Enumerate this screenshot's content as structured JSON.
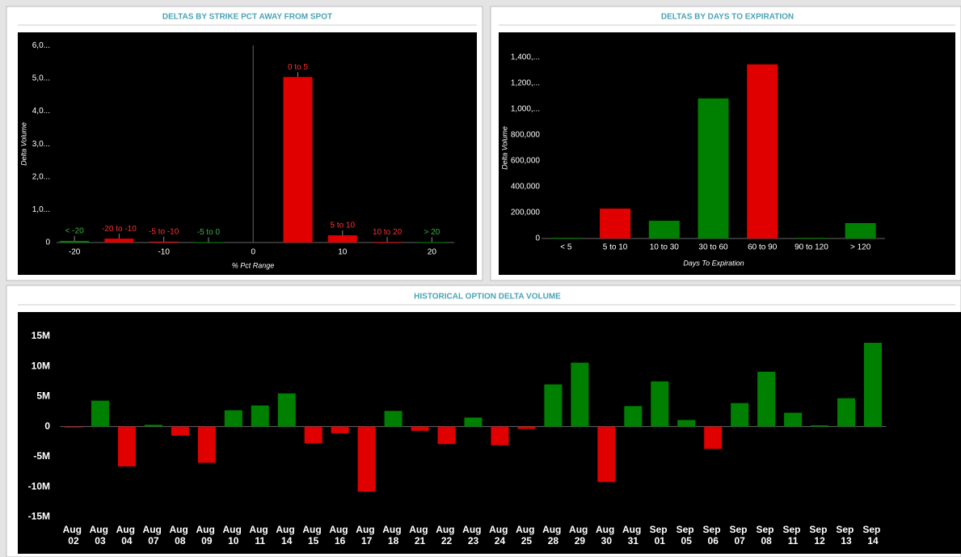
{
  "chart_data": [
    {
      "type": "bar",
      "title": "DELTAS BY STRIKE PCT AWAY FROM SPOT",
      "y_label": "Delta Volume",
      "x_label": "% Pct Range",
      "x": [
        -20,
        -15,
        -10,
        -5,
        5,
        10,
        15,
        20
      ],
      "labels": [
        "< -20",
        "-20 to -10",
        "-5 to -10",
        "-5 to 0",
        "0 to 5",
        "5 to 10",
        "10 to 20",
        "> 20"
      ],
      "values": [
        50000,
        120000,
        30000,
        10000,
        5040000,
        220000,
        20000,
        15000
      ],
      "colors": [
        "#008000",
        "#e00000",
        "#e00000",
        "#008000",
        "#e00000",
        "#e00000",
        "#e00000",
        "#008000"
      ],
      "xlim": [
        -22,
        22.5
      ],
      "xticks": [
        -20,
        -10,
        0,
        10,
        20
      ],
      "ylim": [
        0,
        6350000
      ],
      "yticks": [
        0,
        {
          "value": 1000000,
          "label": "1,0..."
        },
        {
          "value": 2000000,
          "label": "2,0..."
        },
        {
          "value": 3000000,
          "label": "3,0..."
        },
        {
          "value": 4000000,
          "label": "4,0..."
        },
        {
          "value": 5000000,
          "label": "5,0..."
        },
        {
          "value": 6000000,
          "label": "6,0..."
        }
      ]
    },
    {
      "type": "bar",
      "title": "DELTAS BY DAYS TO EXPIRATION",
      "y_label": "Delta Volume",
      "x_label": "Days To Expiration",
      "categories": [
        "< 5",
        "5 to 10",
        "10 to 30",
        "30 to 60",
        "60 to 90",
        "90 to 120",
        "> 120"
      ],
      "values": [
        5000,
        231000,
        137000,
        1081000,
        1344000,
        5000,
        119000
      ],
      "colors": [
        "#008000",
        "#e00000",
        "#008000",
        "#008000",
        "#e00000",
        "#008000",
        "#008000"
      ],
      "ylim": [
        0,
        1560000
      ],
      "yticks": [
        0,
        {
          "value": 200000,
          "label": "200,000"
        },
        {
          "value": 400000,
          "label": "400,000"
        },
        {
          "value": 600000,
          "label": "600,000"
        },
        {
          "value": 800000,
          "label": "800,000"
        },
        {
          "value": 1000000,
          "label": "1,000,..."
        },
        {
          "value": 1200000,
          "label": "1,200,..."
        },
        {
          "value": 1400000,
          "label": "1,400,..."
        }
      ]
    },
    {
      "type": "bar",
      "title": "HISTORICAL OPTION DELTA VOLUME",
      "categories": [
        "Aug 02",
        "Aug 03",
        "Aug 04",
        "Aug 07",
        "Aug 08",
        "Aug 09",
        "Aug 10",
        "Aug 11",
        "Aug 14",
        "Aug 15",
        "Aug 16",
        "Aug 17",
        "Aug 18",
        "Aug 21",
        "Aug 22",
        "Aug 23",
        "Aug 24",
        "Aug 25",
        "Aug 28",
        "Aug 29",
        "Aug 30",
        "Aug 31",
        "Sep 01",
        "Sep 05",
        "Sep 06",
        "Sep 07",
        "Sep 08",
        "Sep 11",
        "Sep 12",
        "Sep 13",
        "Sep 14"
      ],
      "values": [
        -150000,
        4300000,
        -6600000,
        300000,
        -1500000,
        -6000000,
        2700000,
        3500000,
        5500000,
        -2800000,
        -1100000,
        -10800000,
        2600000,
        -700000,
        -2900000,
        1500000,
        -3100000,
        -400000,
        7000000,
        10600000,
        -9200000,
        3400000,
        7500000,
        1100000,
        -3700000,
        3900000,
        9100000,
        2300000,
        200000,
        4700000,
        13900000
      ],
      "positive_color": "#008000",
      "negative_color": "#e00000",
      "ylim": [
        -16000000,
        19000000
      ],
      "yticks": [
        {
          "value": -15000000,
          "label": "-15M"
        },
        {
          "value": -10000000,
          "label": "-10M"
        },
        {
          "value": -5000000,
          "label": "-5M"
        },
        0,
        {
          "value": 5000000,
          "label": "5M"
        },
        {
          "value": 10000000,
          "label": "10M"
        },
        {
          "value": 15000000,
          "label": "15M"
        }
      ]
    }
  ]
}
